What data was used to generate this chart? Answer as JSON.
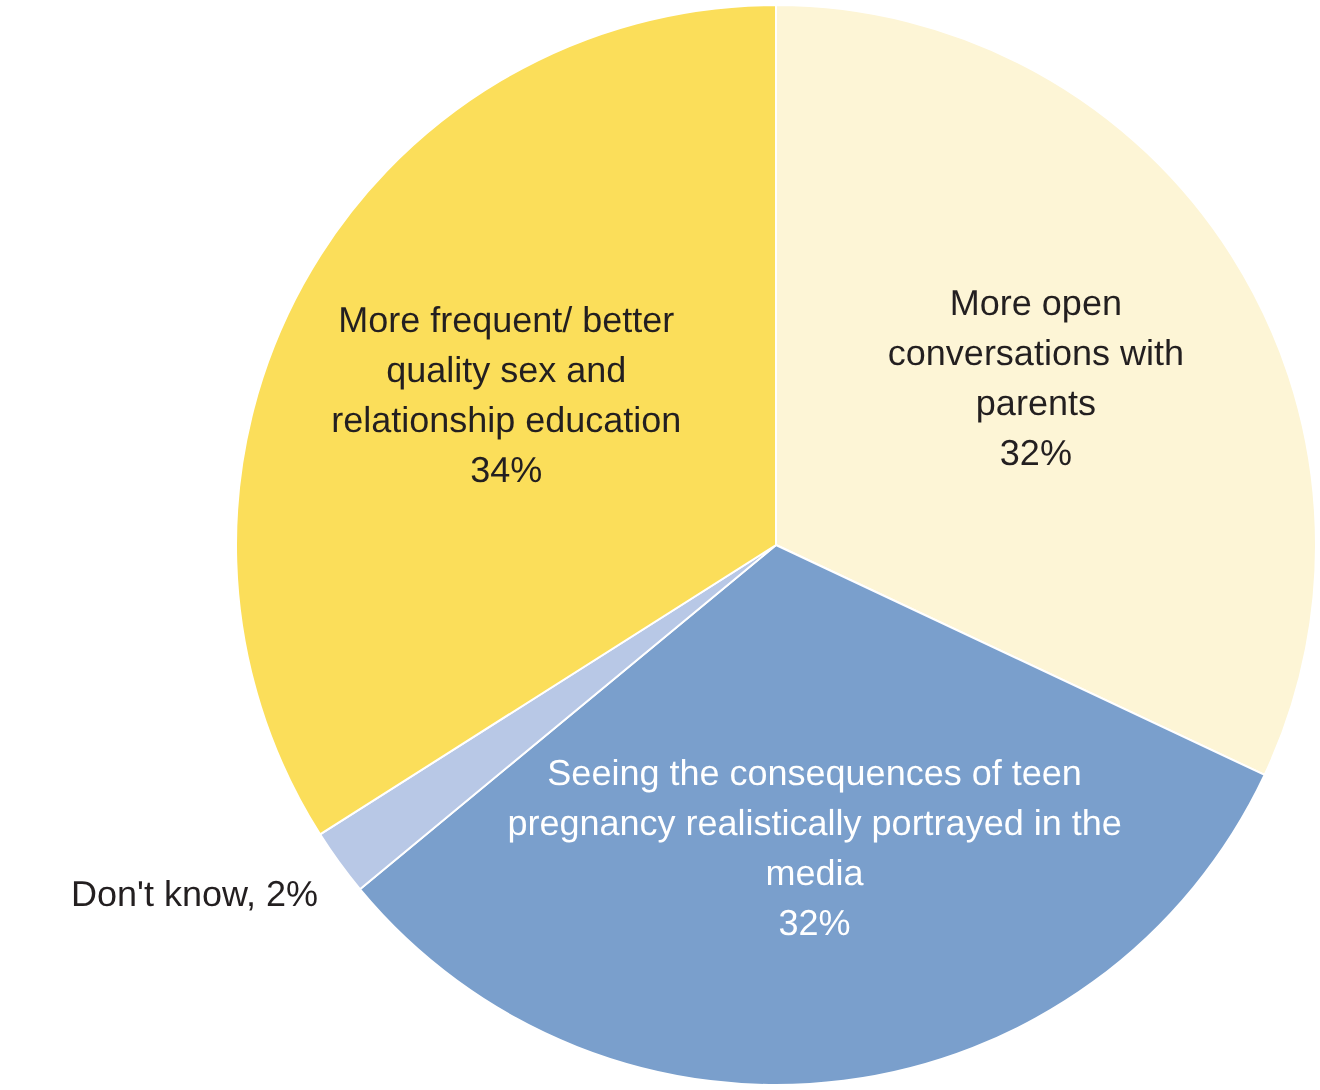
{
  "chart_data": {
    "type": "pie",
    "categories": [
      "More open conversations with parents",
      "Seeing the consequences of teen pregnancy realistically portrayed in the media",
      "Don't know",
      "More frequent/ better quality sex and relationship education"
    ],
    "values": [
      32,
      32,
      2,
      34
    ],
    "value_labels": [
      "32%",
      "32%",
      "2%",
      "34%"
    ],
    "colors": [
      "#fdf5d6",
      "#7a9fcc",
      "#b8c8e6",
      "#fbde5a"
    ],
    "legend": false
  }
}
